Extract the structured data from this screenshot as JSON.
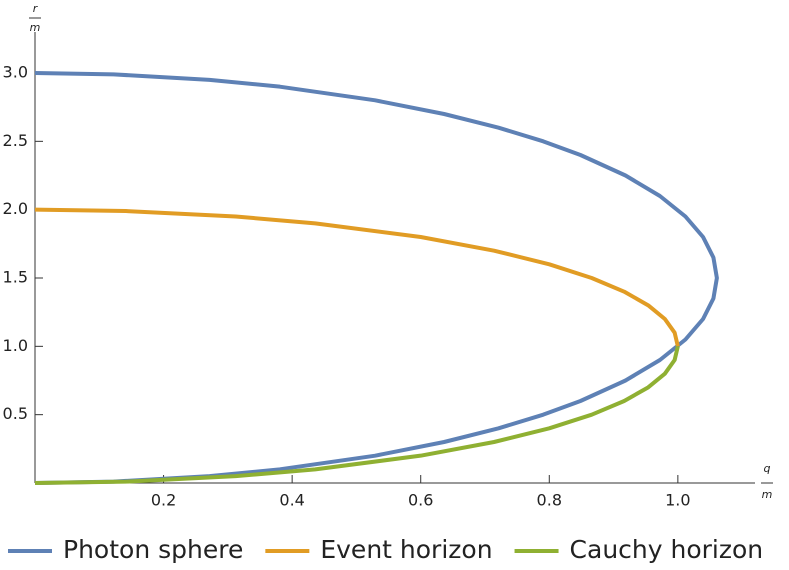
{
  "chart_data": {
    "type": "line",
    "xlabel_numerator": "q",
    "xlabel_denominator": "m",
    "ylabel_numerator": "r",
    "ylabel_denominator": "m",
    "xlim": [
      0,
      1.12
    ],
    "ylim": [
      0,
      3.3
    ],
    "xticks": [
      0.2,
      0.4,
      0.6,
      0.8,
      {
        "value": 1,
        "label": "1.0"
      }
    ],
    "yticks": [
      0.5,
      {
        "value": 1,
        "label": "1.0"
      },
      1.5,
      {
        "value": 2,
        "label": "2.0"
      },
      2.5,
      {
        "value": 3,
        "label": "3.0"
      }
    ],
    "legend": "bottom",
    "series": [
      {
        "name": "Photon sphere",
        "color": "#5e81b5",
        "x": [
          0,
          0.1223,
          0.2716,
          0.3808,
          0.5292,
          0.6364,
          0.7211,
          0.7906,
          0.8485,
          0.9186,
          0.9721,
          1.0118,
          1.0392,
          1.0553,
          1.0607,
          1.0553,
          1.0392,
          1.0118,
          0.9721,
          0.9186,
          0.8485,
          0.7906,
          0.7211,
          0.6364,
          0.5292,
          0.3808,
          0.2716,
          0.1223,
          0
        ],
        "values": [
          0,
          0.01,
          0.05,
          0.1,
          0.2,
          0.3,
          0.4,
          0.5,
          0.6,
          0.75,
          0.9,
          1.05,
          1.2,
          1.35,
          1.5,
          1.65,
          1.8,
          1.95,
          2.1,
          2.25,
          2.4,
          2.5,
          2.6,
          2.7,
          2.8,
          2.9,
          2.95,
          2.99,
          3.0
        ]
      },
      {
        "name": "Event horizon",
        "color": "#e19c24",
        "x": [
          1,
          0.995,
          0.9798,
          0.9539,
          0.9165,
          0.866,
          0.8,
          0.7141,
          0.6,
          0.4359,
          0.3122,
          0.1411,
          0
        ],
        "values": [
          1.0,
          1.1,
          1.2,
          1.3,
          1.4,
          1.5,
          1.6,
          1.7,
          1.8,
          1.9,
          1.95,
          1.99,
          2.0
        ]
      },
      {
        "name": "Cauchy horizon",
        "color": "#8fb032",
        "x": [
          0,
          0.1411,
          0.3122,
          0.4359,
          0.6,
          0.7141,
          0.8,
          0.866,
          0.9165,
          0.9539,
          0.9798,
          0.995,
          1
        ],
        "values": [
          0,
          0.01,
          0.05,
          0.1,
          0.2,
          0.3,
          0.4,
          0.5,
          0.6,
          0.7,
          0.8,
          0.9,
          1.0
        ]
      }
    ]
  }
}
